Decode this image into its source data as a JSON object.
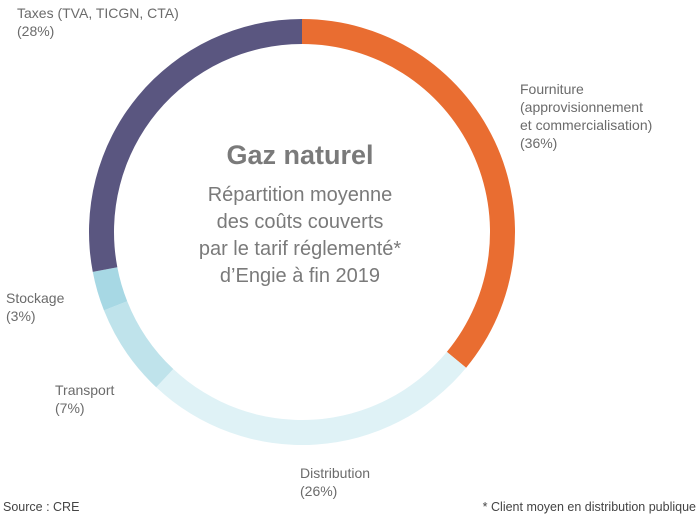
{
  "chart_data": {
    "type": "pie",
    "title": "Gaz naturel",
    "subtitle_lines": [
      "Répartition moyenne",
      "des coûts couverts",
      "par le tarif réglementé*",
      "d’Engie à fin 2019"
    ],
    "slices": [
      {
        "label_lines": [
          "Fourniture",
          "(approvisionnement",
          "et commercialisation)"
        ],
        "value": 36,
        "value_label": "(36%)",
        "color": "#E96D31"
      },
      {
        "label_lines": [
          "Distribution"
        ],
        "value": 26,
        "value_label": "(26%)",
        "color": "#DFF2F6"
      },
      {
        "label_lines": [
          "Transport"
        ],
        "value": 7,
        "value_label": "(7%)",
        "color": "#BFE3EB"
      },
      {
        "label_lines": [
          "Stockage"
        ],
        "value": 3,
        "value_label": "(3%)",
        "color": "#A7D8E4"
      },
      {
        "label_lines": [
          "Taxes (TVA, TICGN, CTA)"
        ],
        "value": 28,
        "value_label": "(28%)",
        "color": "#5A5680"
      }
    ]
  },
  "footer": {
    "source": "Source : CRE",
    "note": "* Client moyen en distribution publique"
  }
}
